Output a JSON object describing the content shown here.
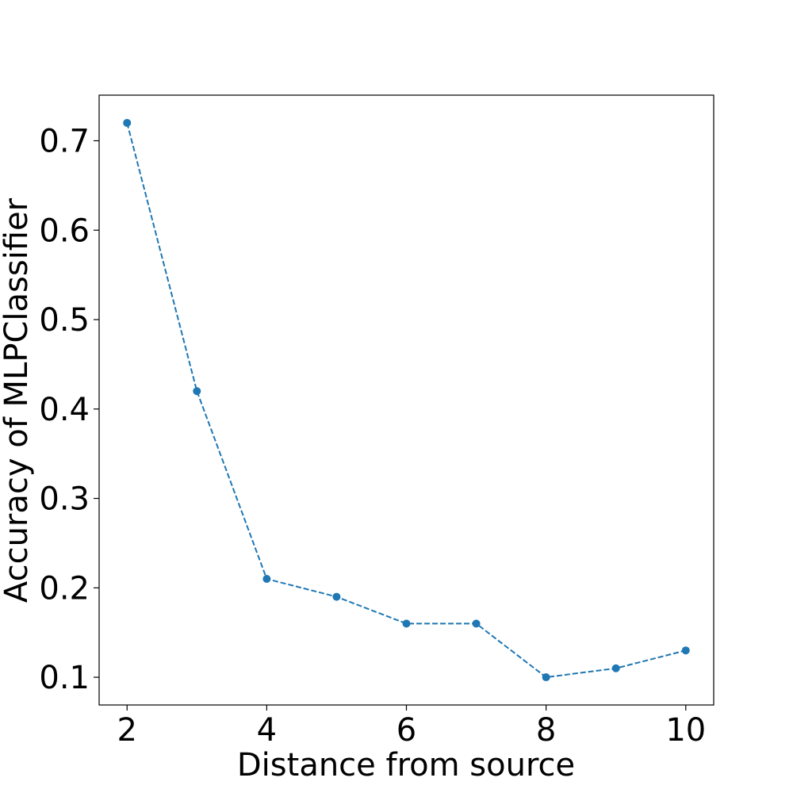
{
  "chart_data": {
    "type": "line",
    "title": "",
    "xlabel": "Distance from source",
    "ylabel": "Accuracy of MLPClassifier",
    "x": [
      2,
      3,
      4,
      5,
      6,
      7,
      8,
      9,
      10
    ],
    "series": [
      {
        "values": [
          0.72,
          0.42,
          0.21,
          0.19,
          0.16,
          0.16,
          0.1,
          0.11,
          0.13
        ],
        "color": "#1f77b4",
        "line_style": "dashed",
        "marker": "circle"
      }
    ],
    "xlim": [
      1.6,
      10.4
    ],
    "ylim": [
      0.069,
      0.751
    ],
    "xticks": [
      "2",
      "4",
      "6",
      "8",
      "10"
    ],
    "xtick_values": [
      2,
      4,
      6,
      8,
      10
    ],
    "yticks": [
      "0.1",
      "0.2",
      "0.3",
      "0.4",
      "0.5",
      "0.6",
      "0.7"
    ],
    "ytick_values": [
      0.1,
      0.2,
      0.3,
      0.4,
      0.5,
      0.6,
      0.7
    ],
    "grid": false,
    "legend": "none"
  }
}
